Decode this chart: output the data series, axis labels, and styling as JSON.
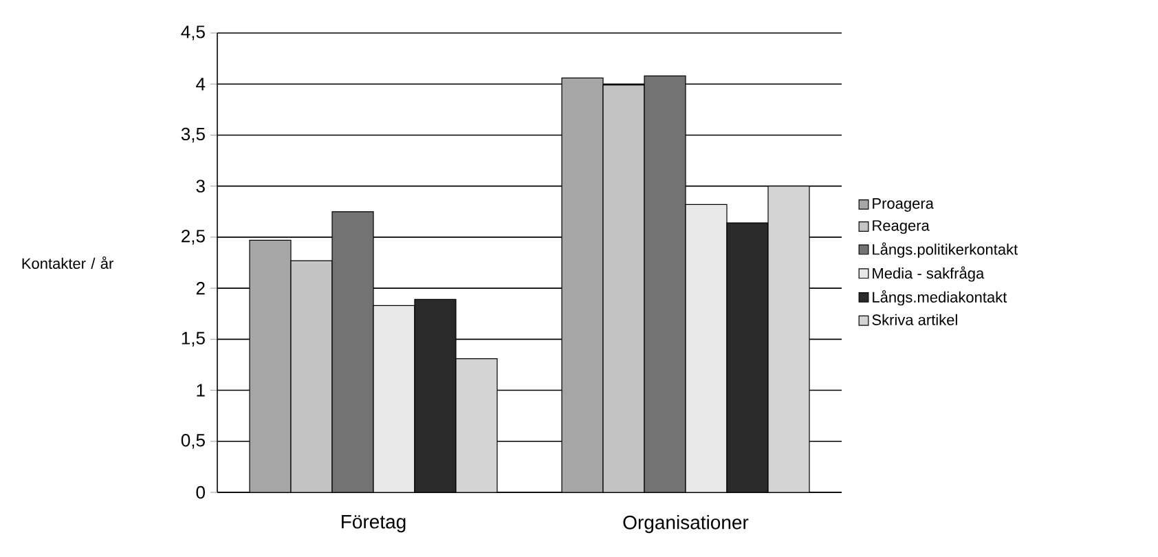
{
  "chart_data": {
    "type": "bar",
    "ylabel": "Kontakter / år",
    "categories": [
      "Företag",
      "Organisationer"
    ],
    "series": [
      {
        "name": "Proagera",
        "color": "#a6a6a6",
        "values": [
          2.47,
          4.06
        ]
      },
      {
        "name": "Reagera",
        "color": "#c4c4c4",
        "values": [
          2.27,
          3.99
        ]
      },
      {
        "name": "Långs.politikerkontakt",
        "color": "#737373",
        "values": [
          2.75,
          4.08
        ]
      },
      {
        "name": "Media - sakfråga",
        "color": "#e8e8e8",
        "values": [
          1.83,
          2.82
        ]
      },
      {
        "name": "Långs.mediakontakt",
        "color": "#2a2a2a",
        "values": [
          1.89,
          2.64
        ]
      },
      {
        "name": "Skriva artikel",
        "color": "#d4d4d4",
        "values": [
          1.31,
          3.0
        ]
      }
    ],
    "ylim": [
      0,
      4.5
    ],
    "yticks": [
      0,
      {
        "value": 0.5,
        "label": "0,5"
      },
      1,
      {
        "value": 1.5,
        "label": "1,5"
      },
      2,
      {
        "value": 2.5,
        "label": "2,5"
      },
      3,
      {
        "value": 3.5,
        "label": "3,5"
      },
      4,
      {
        "value": 4.5,
        "label": "4,5"
      }
    ],
    "grid": "y",
    "legend": "right"
  }
}
